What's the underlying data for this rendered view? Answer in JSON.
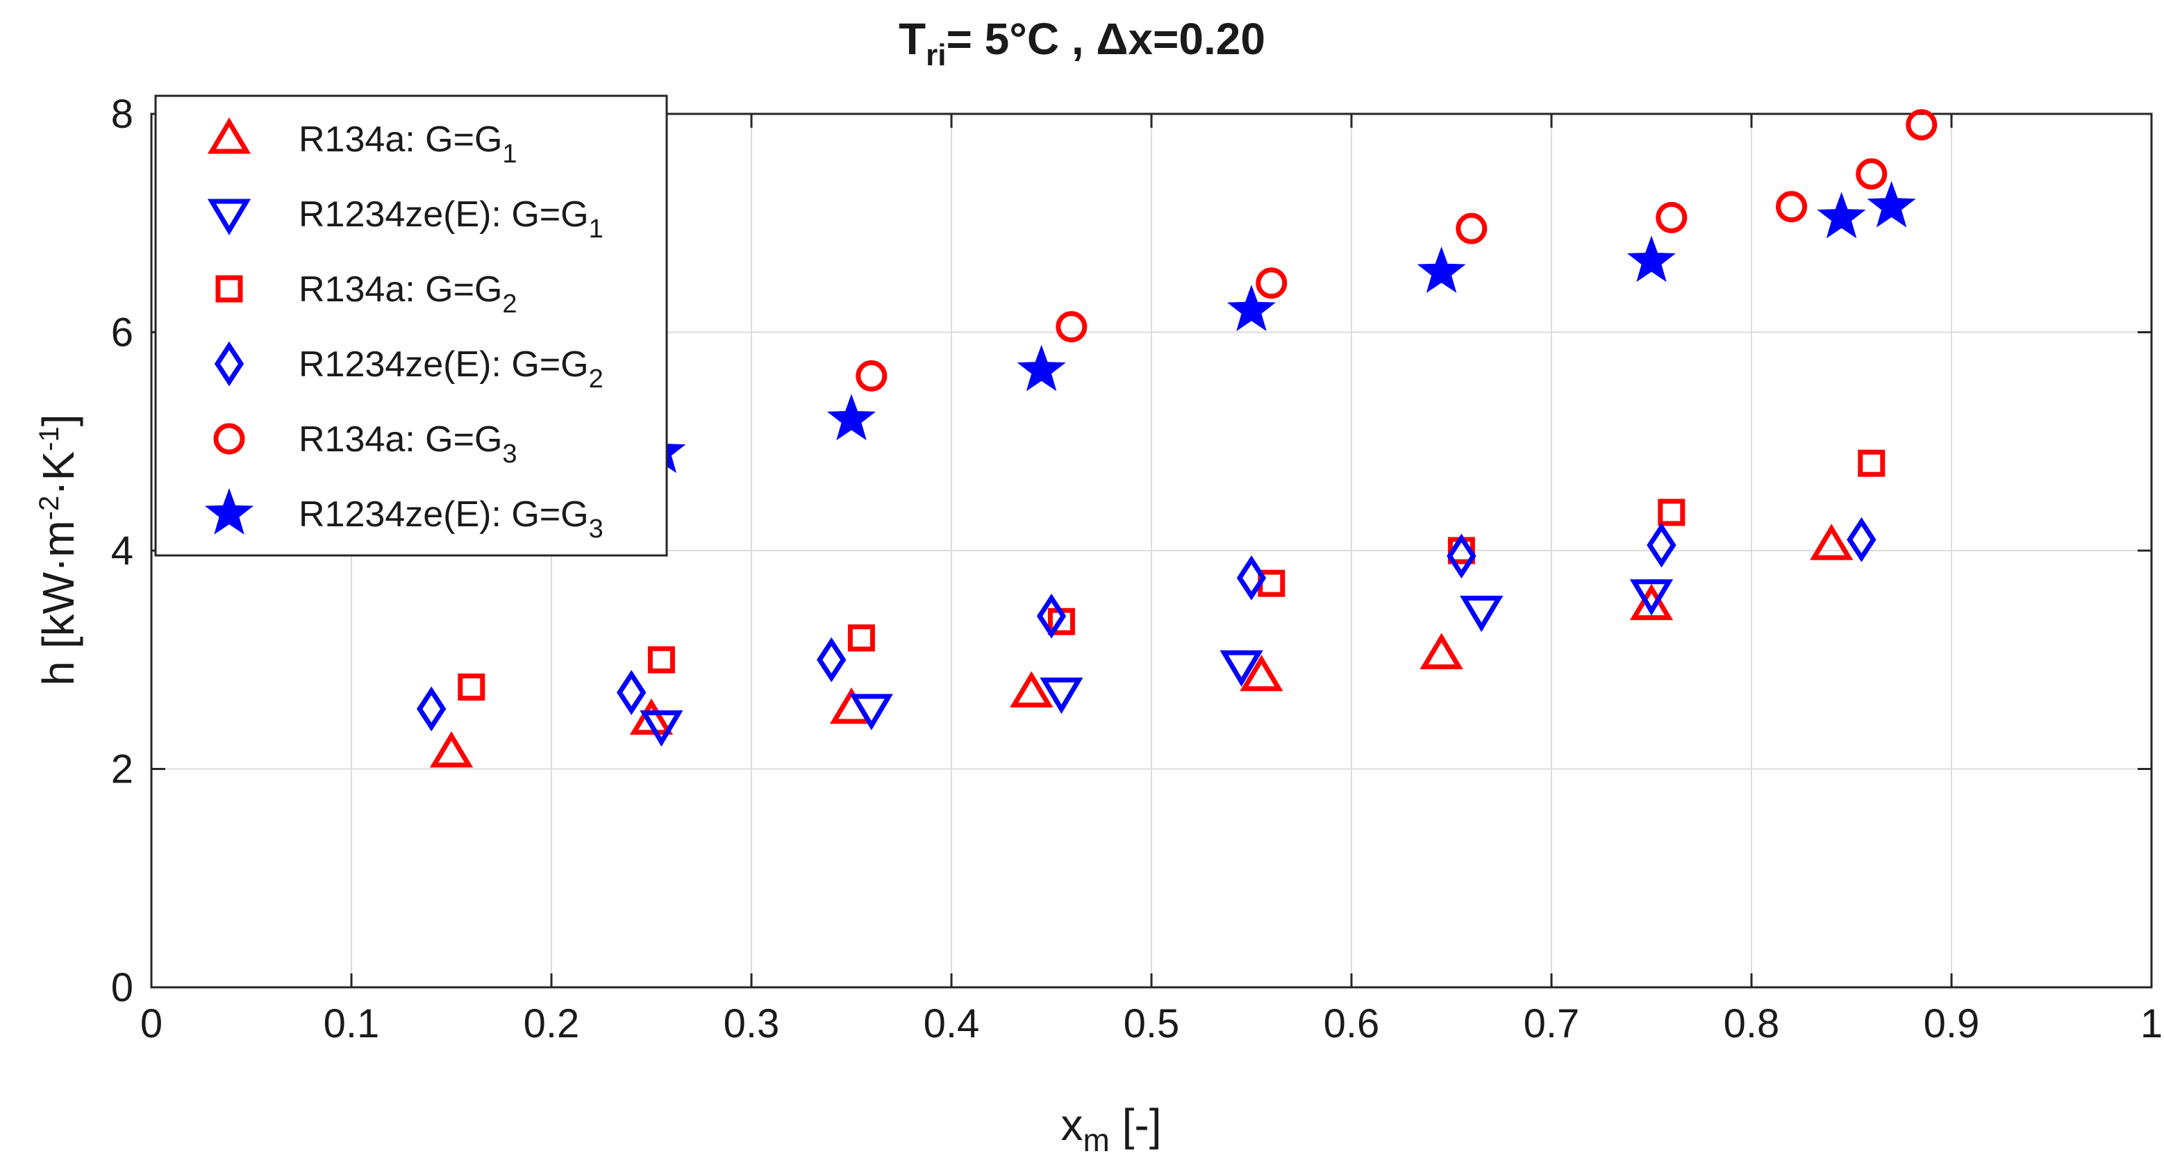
{
  "chart_data": {
    "type": "scatter",
    "title": {
      "prefix": "T",
      "sub": "ri",
      "suffix": "= 5°C , Δx=0.20"
    },
    "xlabel": {
      "main": "x",
      "sub": "m",
      "unit": " [-]"
    },
    "ylabel": {
      "base": "h [kW·m",
      "sup1": "-2",
      "mid": "·K",
      "sup2": "-1",
      "end": "]"
    },
    "xlim": [
      0,
      1
    ],
    "ylim": [
      0,
      8
    ],
    "xticks": [
      0,
      0.1,
      0.2,
      0.3,
      0.4,
      0.5,
      0.6,
      0.7,
      0.8,
      0.9,
      1
    ],
    "xtick_labels": [
      "0",
      "0.1",
      "0.2",
      "0.3",
      "0.4",
      "0.5",
      "0.6",
      "0.7",
      "0.8",
      "0.9",
      "1"
    ],
    "yticks": [
      0,
      2,
      4,
      6,
      8
    ],
    "ytick_labels": [
      "0",
      "2",
      "4",
      "6",
      "8"
    ],
    "grid": true,
    "legend_position": "top-left",
    "series": [
      {
        "name": "R134a: G=G1",
        "label_main": "R134a: G=G",
        "label_sub": "1",
        "marker": "triangle-up",
        "color": "#ff0000",
        "points": [
          [
            0.15,
            2.15
          ],
          [
            0.25,
            2.45
          ],
          [
            0.35,
            2.55
          ],
          [
            0.44,
            2.7
          ],
          [
            0.555,
            2.85
          ],
          [
            0.645,
            3.05
          ],
          [
            0.75,
            3.5
          ],
          [
            0.84,
            4.05
          ]
        ]
      },
      {
        "name": "R1234ze(E): G=G1",
        "label_main": "R1234ze(E): G=G",
        "label_sub": "1",
        "marker": "triangle-down",
        "color": "#0000ff",
        "points": [
          [
            0.255,
            2.4
          ],
          [
            0.36,
            2.55
          ],
          [
            0.455,
            2.7
          ],
          [
            0.545,
            2.95
          ],
          [
            0.665,
            3.45
          ],
          [
            0.75,
            3.6
          ]
        ]
      },
      {
        "name": "R134a: G=G2",
        "label_main": "R134a: G=G",
        "label_sub": "2",
        "marker": "square",
        "color": "#ff0000",
        "points": [
          [
            0.16,
            2.75
          ],
          [
            0.255,
            3.0
          ],
          [
            0.355,
            3.2
          ],
          [
            0.455,
            3.35
          ],
          [
            0.56,
            3.7
          ],
          [
            0.655,
            4.0
          ],
          [
            0.76,
            4.35
          ],
          [
            0.86,
            4.8
          ]
        ]
      },
      {
        "name": "R1234ze(E): G=G2",
        "label_main": "R1234ze(E): G=G",
        "label_sub": "2",
        "marker": "diamond",
        "color": "#0000ff",
        "points": [
          [
            0.14,
            2.55
          ],
          [
            0.24,
            2.7
          ],
          [
            0.34,
            3.0
          ],
          [
            0.45,
            3.4
          ],
          [
            0.55,
            3.75
          ],
          [
            0.655,
            3.95
          ],
          [
            0.755,
            4.05
          ],
          [
            0.855,
            4.1
          ]
        ]
      },
      {
        "name": "R134a: G=G3",
        "label_main": "R134a: G=G",
        "label_sub": "3",
        "marker": "circle",
        "color": "#ff0000",
        "points": [
          [
            0.36,
            5.6
          ],
          [
            0.46,
            6.05
          ],
          [
            0.56,
            6.45
          ],
          [
            0.66,
            6.95
          ],
          [
            0.76,
            7.05
          ],
          [
            0.82,
            7.15
          ],
          [
            0.86,
            7.45
          ],
          [
            0.885,
            7.9
          ]
        ]
      },
      {
        "name": "R1234ze(E): G=G3",
        "label_main": "R1234ze(E): G=G",
        "label_sub": "3",
        "marker": "star",
        "color": "#0000ff",
        "points": [
          [
            0.255,
            4.9
          ],
          [
            0.35,
            5.2
          ],
          [
            0.445,
            5.65
          ],
          [
            0.55,
            6.2
          ],
          [
            0.645,
            6.55
          ],
          [
            0.75,
            6.65
          ],
          [
            0.845,
            7.05
          ],
          [
            0.87,
            7.15
          ]
        ]
      }
    ]
  }
}
